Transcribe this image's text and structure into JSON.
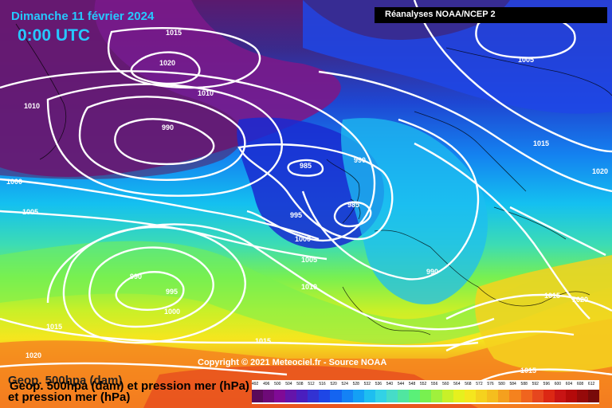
{
  "header": {
    "date": "Dimanche 11 février 2024",
    "time": "0:00 UTC",
    "source": "Réanalyses NOAA/NCEP 2"
  },
  "copyright": "Copyright © 2021 Meteociel.fr - Source NOAA",
  "legend": {
    "line1": "Geop. 500hpa (dam)",
    "line2": "Geop. 500hpa (dam) et pression mer (hPa)",
    "line3": "et pression mer (hPa)"
  },
  "scale": {
    "ticks": [
      "492",
      "496",
      "500",
      "504",
      "508",
      "512",
      "516",
      "520",
      "524",
      "528",
      "532",
      "536",
      "540",
      "544",
      "548",
      "552",
      "556",
      "560",
      "564",
      "568",
      "572",
      "576",
      "580",
      "584",
      "588",
      "592",
      "596",
      "600",
      "604",
      "608",
      "612"
    ],
    "colors": [
      "#5a0a5a",
      "#6e0a78",
      "#800a96",
      "#6414aa",
      "#4a1ebe",
      "#3232d2",
      "#1e46e6",
      "#1464f0",
      "#1482f5",
      "#14a0f5",
      "#1ebef0",
      "#32d2e6",
      "#46dcc8",
      "#50e6a0",
      "#5af078",
      "#78f050",
      "#a0f03c",
      "#c8f028",
      "#e6f01e",
      "#f5e61e",
      "#f5d21e",
      "#f5be1e",
      "#f5a01e",
      "#f5821e",
      "#f0641e",
      "#e6461e",
      "#dc2814",
      "#c81414",
      "#b40a0a",
      "#960a0a",
      "#780a0a"
    ]
  },
  "isobars": [
    "1015",
    "1020",
    "1010",
    "1005",
    "990",
    "1010",
    "1000",
    "1005",
    "985",
    "990",
    "985",
    "995",
    "1000",
    "1005",
    "1010",
    "990",
    "995",
    "1000",
    "1015",
    "1015",
    "1020",
    "1015",
    "990",
    "1015",
    "1020",
    "1020",
    "1015"
  ]
}
